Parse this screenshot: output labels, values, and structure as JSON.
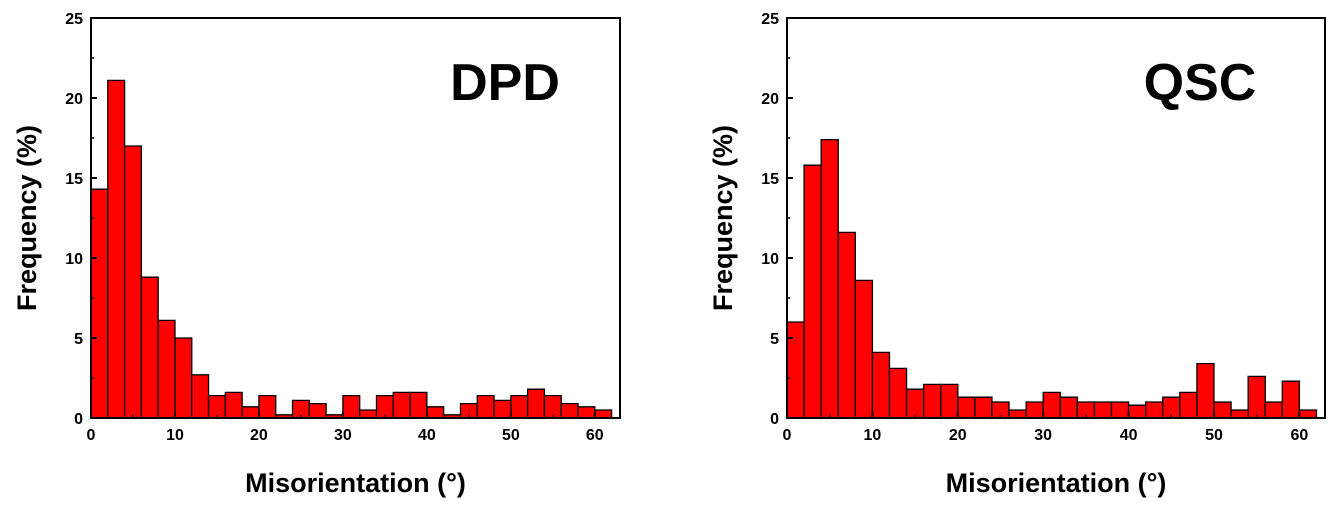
{
  "chart_data": [
    {
      "type": "bar",
      "annotation": "DPD",
      "xlabel": "Misorientation (°)",
      "ylabel": "Frequency (%)",
      "xlim": [
        0,
        63
      ],
      "ylim": [
        0,
        25
      ],
      "xticks": [
        0,
        10,
        20,
        30,
        40,
        50,
        60
      ],
      "yticks": [
        0,
        5,
        10,
        15,
        20,
        25
      ],
      "bin_width": 2,
      "bar_color": "#ff0000",
      "x": [
        1,
        3,
        5,
        7,
        9,
        11,
        13,
        15,
        17,
        19,
        21,
        23,
        25,
        27,
        29,
        31,
        33,
        35,
        37,
        39,
        41,
        43,
        45,
        47,
        49,
        51,
        53,
        55,
        57,
        59,
        61
      ],
      "values": [
        14.3,
        21.1,
        17.0,
        8.8,
        6.1,
        5.0,
        2.7,
        1.4,
        1.6,
        0.7,
        1.4,
        0.2,
        1.1,
        0.9,
        0.2,
        1.4,
        0.5,
        1.4,
        1.6,
        1.6,
        0.7,
        0.2,
        0.9,
        1.4,
        1.1,
        1.4,
        1.8,
        1.4,
        0.9,
        0.7,
        0.5
      ]
    },
    {
      "type": "bar",
      "annotation": "QSC",
      "xlabel": "Misorientation (°)",
      "ylabel": "Frequency (%)",
      "xlim": [
        0,
        63
      ],
      "ylim": [
        0,
        25
      ],
      "xticks": [
        0,
        10,
        20,
        30,
        40,
        50,
        60
      ],
      "yticks": [
        0,
        5,
        10,
        15,
        20,
        25
      ],
      "bin_width": 2,
      "bar_color": "#ff0000",
      "x": [
        1,
        3,
        5,
        7,
        9,
        11,
        13,
        15,
        17,
        19,
        21,
        23,
        25,
        27,
        29,
        31,
        33,
        35,
        37,
        39,
        41,
        43,
        45,
        47,
        49,
        51,
        53,
        55,
        57,
        59,
        61
      ],
      "values": [
        6.0,
        15.8,
        17.4,
        11.6,
        8.6,
        4.1,
        3.1,
        1.8,
        2.1,
        2.1,
        1.3,
        1.3,
        1.0,
        0.5,
        1.0,
        1.6,
        1.3,
        1.0,
        1.0,
        1.0,
        0.8,
        1.0,
        1.3,
        1.6,
        3.4,
        1.0,
        0.5,
        2.6,
        1.0,
        2.3,
        0.5
      ]
    }
  ]
}
